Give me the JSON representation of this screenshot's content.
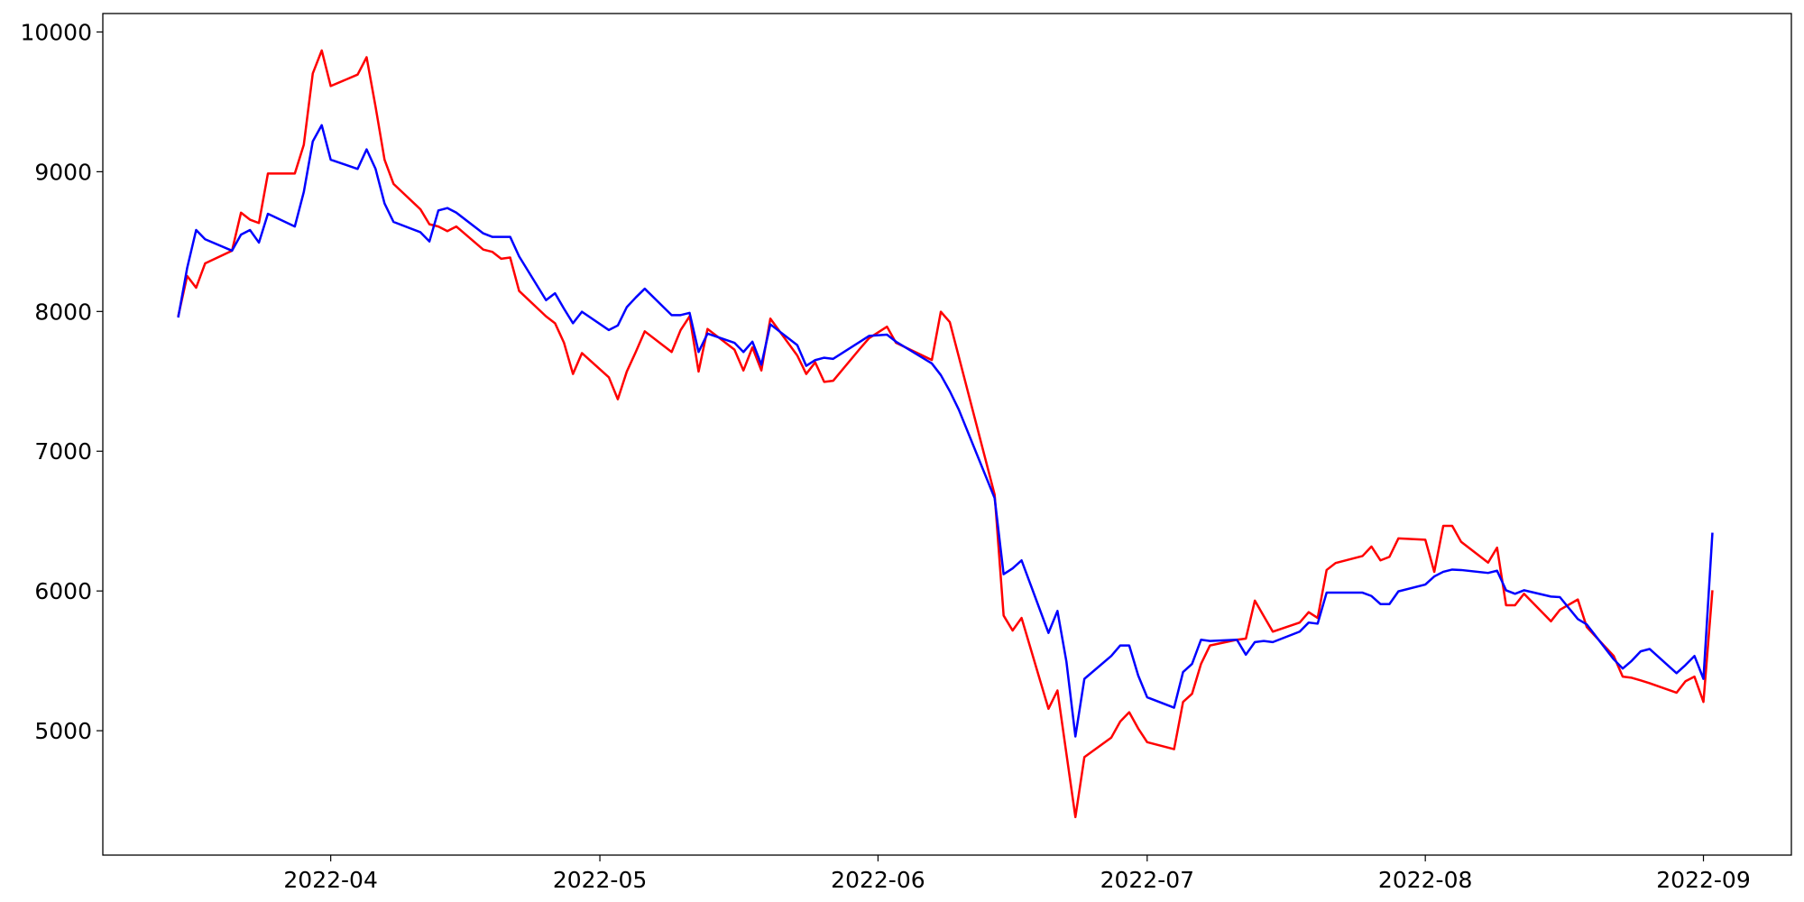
{
  "chart_data": {
    "type": "line",
    "x": [
      19066,
      19067,
      19068,
      19069,
      19072,
      19073,
      19074,
      19075,
      19076,
      19079,
      19080,
      19081,
      19082,
      19083,
      19086,
      19087,
      19088,
      19089,
      19090,
      19093,
      19094,
      19095,
      19096,
      19097,
      19100,
      19101,
      19102,
      19103,
      19104,
      19107,
      19108,
      19109,
      19110,
      19111,
      19114,
      19115,
      19116,
      19117,
      19118,
      19121,
      19122,
      19123,
      19124,
      19125,
      19128,
      19129,
      19130,
      19131,
      19132,
      19135,
      19136,
      19137,
      19138,
      19139,
      19142,
      19143,
      19145,
      19146,
      19150,
      19151,
      19152,
      19153,
      19157,
      19158,
      19159,
      19160,
      19163,
      19164,
      19165,
      19166,
      19167,
      19170,
      19171,
      19172,
      19173,
      19174,
      19177,
      19178,
      19179,
      19180,
      19181,
      19184,
      19185,
      19186,
      19187,
      19188,
      19191,
      19192,
      19193,
      19194,
      19195,
      19198,
      19199,
      19200,
      19201,
      19202,
      19205,
      19206,
      19207,
      19208,
      19209,
      19212,
      19213,
      19214,
      19215,
      19216,
      19219,
      19220,
      19222,
      19223,
      19226,
      19227,
      19228,
      19229,
      19230,
      19233,
      19234,
      19235,
      19236,
      19237
    ],
    "series": [
      {
        "color": "#ff0000",
        "values": [
          7965,
          8254,
          8170,
          8344,
          8435,
          8707,
          8657,
          8633,
          8987,
          8987,
          9193,
          9703,
          9868,
          9613,
          9695,
          9819,
          9465,
          9086,
          8913,
          8731,
          8624,
          8608,
          8575,
          8608,
          8443,
          8427,
          8377,
          8386,
          8147,
          7965,
          7916,
          7776,
          7553,
          7702,
          7529,
          7372,
          7570,
          7710,
          7858,
          7710,
          7867,
          7965,
          7570,
          7875,
          7727,
          7578,
          7743,
          7578,
          7949,
          7685,
          7553,
          7636,
          7496,
          7504,
          7735,
          7809,
          7891,
          7776,
          7653,
          7998,
          7924,
          7677,
          6689,
          5824,
          5717,
          5807,
          5157,
          5288,
          4835,
          4382,
          4811,
          4951,
          5066,
          5132,
          5016,
          4918,
          4868,
          5206,
          5264,
          5478,
          5610,
          5651,
          5659,
          5931,
          5820,
          5709,
          5774,
          5848,
          5807,
          6150,
          6200,
          6250,
          6318,
          6219,
          6244,
          6376,
          6367,
          6137,
          6466,
          6466,
          6351,
          6203,
          6310,
          5898,
          5898,
          5980,
          5783,
          5865,
          5939,
          5741,
          5535,
          5387,
          5379,
          5360,
          5340,
          5272,
          5354,
          5387,
          5206,
          6005
        ]
      },
      {
        "color": "#0000ff",
        "values": [
          7957,
          8311,
          8583,
          8517,
          8435,
          8550,
          8583,
          8493,
          8699,
          8608,
          8855,
          9217,
          9333,
          9086,
          9020,
          9160,
          9020,
          8773,
          8641,
          8567,
          8501,
          8723,
          8740,
          8707,
          8559,
          8534,
          8534,
          8534,
          8394,
          8081,
          8130,
          8020,
          7916,
          7998,
          7867,
          7900,
          8031,
          8100,
          8163,
          7974,
          7974,
          7990,
          7710,
          7842,
          7776,
          7710,
          7784,
          7619,
          7908,
          7759,
          7611,
          7652,
          7669,
          7661,
          7784,
          7825,
          7834,
          7784,
          7628,
          7545,
          7430,
          7298,
          6664,
          6120,
          6161,
          6219,
          5700,
          5857,
          5494,
          4959,
          5371,
          5535,
          5610,
          5610,
          5395,
          5239,
          5165,
          5420,
          5478,
          5651,
          5642,
          5651,
          5544,
          5634,
          5642,
          5634,
          5709,
          5774,
          5766,
          5988,
          5988,
          5988,
          5964,
          5906,
          5906,
          5997,
          6046,
          6104,
          6137,
          6153,
          6150,
          6129,
          6145,
          6005,
          5980,
          6005,
          5960,
          5956,
          5799,
          5760,
          5511,
          5445,
          5500,
          5568,
          5585,
          5412,
          5470,
          5535,
          5371,
          6417
        ]
      }
    ],
    "xlim": [
      19057.6,
      19245.8
    ],
    "ylim": [
      4110,
      10132
    ],
    "xticks": [
      {
        "value": 19083,
        "label": "2022-04"
      },
      {
        "value": 19113,
        "label": "2022-05"
      },
      {
        "value": 19144,
        "label": "2022-06"
      },
      {
        "value": 19174,
        "label": "2022-07"
      },
      {
        "value": 19205,
        "label": "2022-08"
      },
      {
        "value": 19236,
        "label": "2022-09"
      }
    ],
    "yticks": [
      5000,
      6000,
      7000,
      8000,
      9000,
      10000
    ],
    "grid": false
  }
}
